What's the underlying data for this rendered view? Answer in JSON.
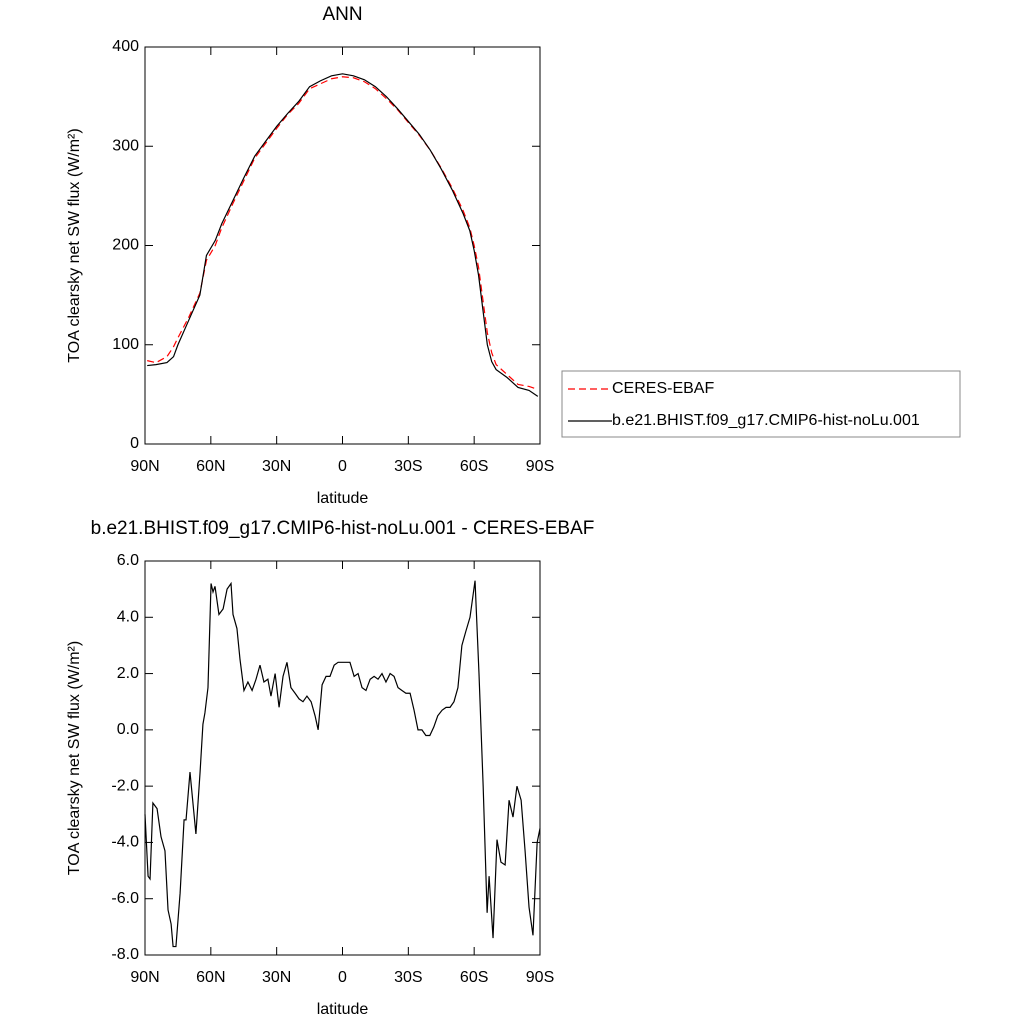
{
  "chart_data": [
    {
      "type": "line",
      "title": "ANN",
      "xlabel": "latitude",
      "ylabel": "TOA clearsky net SW flux (W/m²)",
      "xlim": [
        90,
        -90
      ],
      "ylim": [
        0,
        400
      ],
      "xticks": [
        {
          "value": 90,
          "label": "90N"
        },
        {
          "value": 60,
          "label": "60N"
        },
        {
          "value": 30,
          "label": "30N"
        },
        0,
        {
          "value": -30,
          "label": "30S"
        },
        {
          "value": -60,
          "label": "60S"
        },
        {
          "value": -90,
          "label": "90S"
        }
      ],
      "yticks": [
        0,
        100,
        200,
        300,
        400
      ],
      "legend": "right",
      "x": [
        89,
        85,
        80,
        77,
        75,
        70,
        65,
        62,
        58,
        55,
        50,
        45,
        40,
        35,
        30,
        25,
        20,
        15,
        10,
        5,
        0,
        -5,
        -10,
        -15,
        -20,
        -25,
        -30,
        -35,
        -40,
        -45,
        -50,
        -55,
        -58,
        -60,
        -62,
        -64,
        -66,
        -68,
        -70,
        -75,
        -80,
        -85,
        -89
      ],
      "series": [
        {
          "name": "CERES-EBAF",
          "color": "#ff0000",
          "dash": true,
          "values": [
            84,
            82,
            88,
            98,
            107,
            128,
            152,
            185,
            200,
            218,
            242,
            265,
            288,
            303,
            318,
            332,
            343,
            358,
            363,
            368,
            370,
            369,
            365,
            358,
            348,
            337,
            324,
            311,
            296,
            278,
            258,
            235,
            218,
            200,
            178,
            145,
            112,
            92,
            80,
            70,
            60,
            58,
            55
          ]
        },
        {
          "name": "b.e21.BHIST.f09_g17.CMIP6-hist-noLu.001",
          "color": "#000000",
          "dash": false,
          "values": [
            79,
            80,
            82,
            88,
            100,
            125,
            150,
            190,
            205,
            222,
            245,
            268,
            290,
            305,
            320,
            333,
            345,
            360,
            366,
            371,
            373,
            371,
            367,
            360,
            350,
            338,
            325,
            312,
            296,
            277,
            256,
            232,
            215,
            195,
            170,
            135,
            100,
            83,
            75,
            67,
            57,
            54,
            48
          ]
        }
      ]
    },
    {
      "type": "line",
      "title": "b.e21.BHIST.f09_g17.CMIP6-hist-noLu.001 - CERES-EBAF",
      "xlabel": "latitude",
      "ylabel": "TOA clearsky net SW flux (W/m²)",
      "xlim": [
        90,
        -90
      ],
      "ylim": [
        -8,
        6
      ],
      "xticks": [
        {
          "value": 90,
          "label": "90N"
        },
        {
          "value": 60,
          "label": "60N"
        },
        {
          "value": 30,
          "label": "30N"
        },
        0,
        {
          "value": -30,
          "label": "30S"
        },
        {
          "value": -60,
          "label": "60S"
        },
        {
          "value": -90,
          "label": "90S"
        }
      ],
      "yticks": [
        {
          "value": -8,
          "label": "-8.0"
        },
        {
          "value": -6,
          "label": "-6.0"
        },
        {
          "value": -4,
          "label": "-4.0"
        },
        {
          "value": -2,
          "label": "-2.0"
        },
        {
          "value": 0,
          "label": "0.0"
        },
        {
          "value": 2,
          "label": "2.0"
        },
        {
          "value": 4,
          "label": "4.0"
        },
        {
          "value": 6,
          "label": "6.0"
        }
      ],
      "color": "#000000",
      "x": [
        90,
        88.6,
        87.7,
        86.4,
        84.5,
        82.7,
        80.9,
        79.5,
        78.1,
        77.2,
        75.9,
        74,
        72.2,
        71.3,
        69.5,
        66.8,
        64.9,
        63.6,
        62.7,
        61.3,
        59.9,
        59,
        58.1,
        56.3,
        54.4,
        52.6,
        50.8,
        49.9,
        48.1,
        46.7,
        44.9,
        43.1,
        41.2,
        39.4,
        37.6,
        35.8,
        34,
        32.6,
        30.7,
        28.9,
        27.1,
        25.3,
        23.5,
        21.6,
        19.8,
        18,
        16.2,
        14.3,
        12.5,
        11.1,
        9.3,
        7.5,
        5.7,
        3.8,
        2,
        0.2,
        -1.6,
        -3.4,
        -5.3,
        -7.1,
        -8.9,
        -10.7,
        -12.6,
        -14.4,
        -16.2,
        -18,
        -19.8,
        -21.7,
        -23.5,
        -25.3,
        -27.1,
        -28.9,
        -30.8,
        -32.6,
        -34.4,
        -36.2,
        -38,
        -39.8,
        -41.6,
        -43.4,
        -45.4,
        -47.2,
        -49,
        -50.8,
        -52.6,
        -54.4,
        -56.2,
        -58.1,
        -60.4,
        -62.2,
        -64.1,
        -65.9,
        -66.8,
        -68.6,
        -70.4,
        -72.2,
        -74.1,
        -75.9,
        -77.7,
        -79.5,
        -81.4,
        -83.2,
        -85,
        -86.8,
        -88.7,
        -90
      ],
      "values": [
        -3.0,
        -5.2,
        -5.3,
        -2.6,
        -2.8,
        -3.8,
        -4.3,
        -6.4,
        -6.9,
        -7.7,
        -7.7,
        -5.8,
        -3.2,
        -3.2,
        -1.5,
        -3.7,
        -1.5,
        0.2,
        0.6,
        1.5,
        5.2,
        4.9,
        5.1,
        4.1,
        4.3,
        5.0,
        5.2,
        4.1,
        3.6,
        2.5,
        1.4,
        1.7,
        1.4,
        1.8,
        2.3,
        1.7,
        1.8,
        1.2,
        2.0,
        0.8,
        1.9,
        2.4,
        1.5,
        1.3,
        1.1,
        1.0,
        1.2,
        1.0,
        0.5,
        0.0,
        1.6,
        1.9,
        1.9,
        2.3,
        2.4,
        2.4,
        2.4,
        2.4,
        1.9,
        2.0,
        1.5,
        1.4,
        1.8,
        1.9,
        1.8,
        2.0,
        1.7,
        2.0,
        1.9,
        1.5,
        1.4,
        1.3,
        1.3,
        0.7,
        0.0,
        0.0,
        -0.2,
        -0.2,
        0.1,
        0.5,
        0.7,
        0.8,
        0.8,
        1.0,
        1.5,
        3.0,
        3.5,
        4.0,
        5.3,
        2.0,
        -2.0,
        -6.5,
        -5.2,
        -7.4,
        -3.9,
        -4.7,
        -4.8,
        -2.5,
        -3.1,
        -2.0,
        -2.5,
        -4.3,
        -6.3,
        -7.3,
        -4.0,
        -3.5
      ]
    }
  ]
}
